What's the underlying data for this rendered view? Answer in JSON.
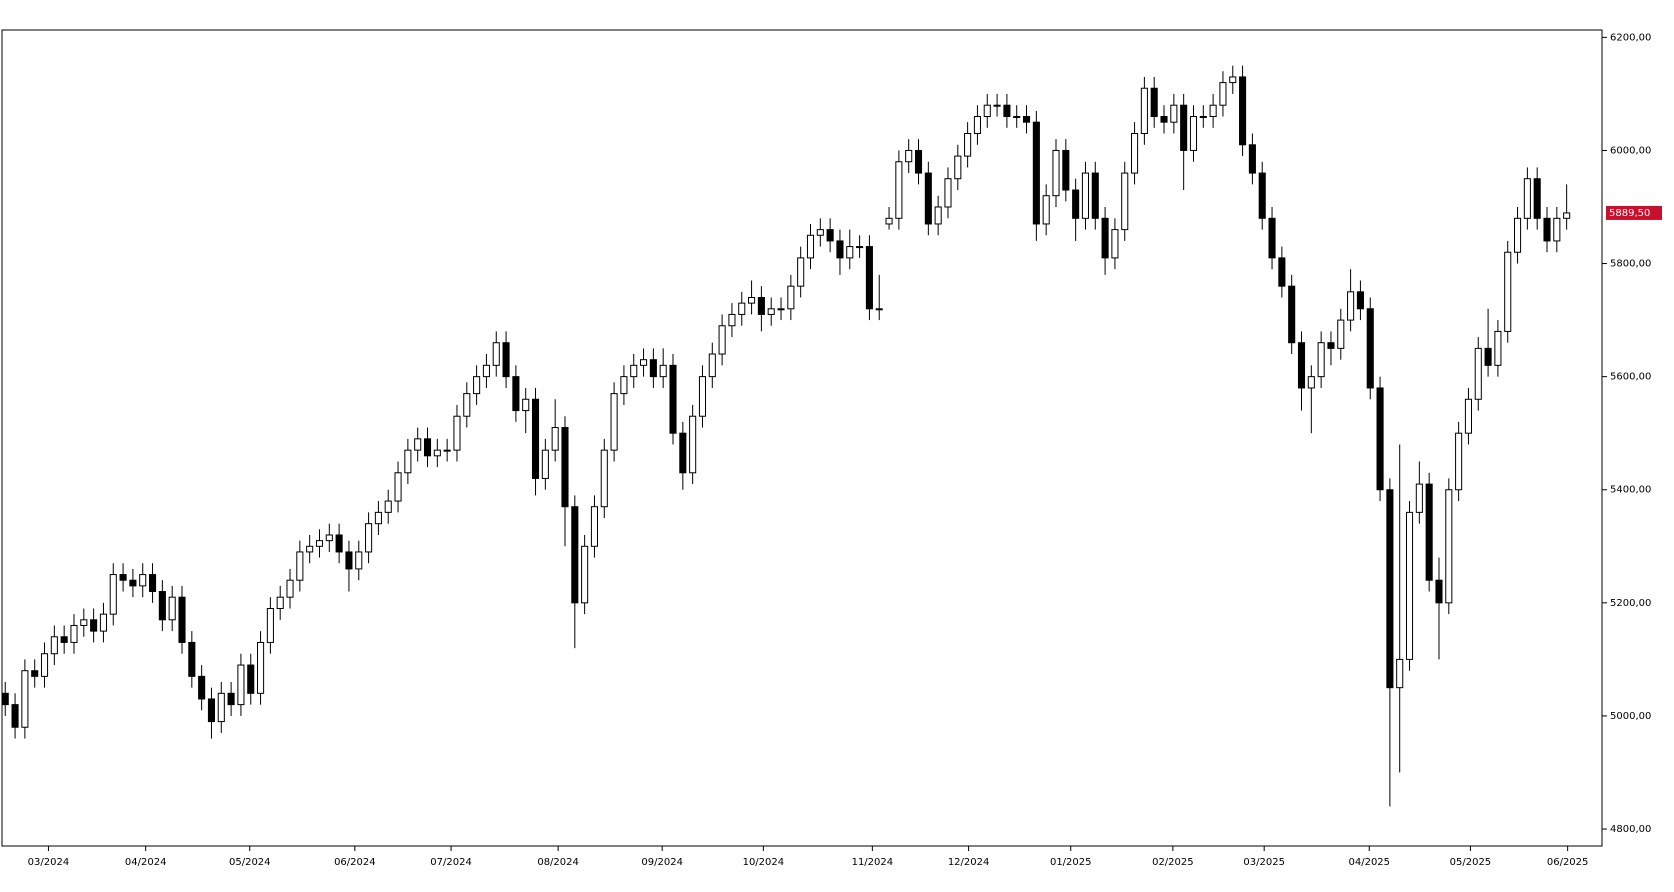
{
  "chart_data": {
    "type": "candlestick",
    "xlim": [
      -0.33,
      162.6
    ],
    "xticks": [
      {
        "value": 4.4,
        "label": "03/2024"
      },
      {
        "value": 14.3,
        "label": "04/2024"
      },
      {
        "value": 24.9,
        "label": "05/2024"
      },
      {
        "value": 35.6,
        "label": "06/2024"
      },
      {
        "value": 45.4,
        "label": "07/2024"
      },
      {
        "value": 56.3,
        "label": "08/2024"
      },
      {
        "value": 66.9,
        "label": "09/2024"
      },
      {
        "value": 77.2,
        "label": "10/2024"
      },
      {
        "value": 88.3,
        "label": "11/2024"
      },
      {
        "value": 98.1,
        "label": "12/2024"
      },
      {
        "value": 108.5,
        "label": "01/2025"
      },
      {
        "value": 118.9,
        "label": "02/2025"
      },
      {
        "value": 128.2,
        "label": "03/2025"
      },
      {
        "value": 138.9,
        "label": "04/2025"
      },
      {
        "value": 149.2,
        "label": "05/2025"
      },
      {
        "value": 159.1,
        "label": "06/2025"
      }
    ],
    "ylim": [
      4770,
      6213
    ],
    "yticks": [
      {
        "value": 4800,
        "label": "4800,00"
      },
      {
        "value": 5000,
        "label": "5000,00"
      },
      {
        "value": 5200,
        "label": "5200,00"
      },
      {
        "value": 5400,
        "label": "5400,00"
      },
      {
        "value": 5600,
        "label": "5600,00"
      },
      {
        "value": 5800,
        "label": "5800,00"
      },
      {
        "value": 6000,
        "label": "6000,00"
      },
      {
        "value": 6200,
        "label": "6200,00"
      }
    ],
    "up_color": "#ffffff",
    "down_color": "#000000",
    "last_price_color": "#c8102e",
    "last_price_label": "5889,50",
    "open": [
      5040,
      5020,
      4980,
      5080,
      5070,
      5110,
      5140,
      5130,
      5160,
      5170,
      5150,
      5180,
      5250,
      5240,
      5230,
      5250,
      5220,
      5170,
      5210,
      5130,
      5070,
      5030,
      4990,
      5040,
      5020,
      5090,
      5040,
      5130,
      5190,
      5210,
      5240,
      5290,
      5300,
      5310,
      5320,
      5290,
      5260,
      5290,
      5340,
      5360,
      5380,
      5430,
      5470,
      5490,
      5460,
      5470,
      5470,
      5530,
      5570,
      5600,
      5620,
      5660,
      5600,
      5540,
      5560,
      5420,
      5470,
      5510,
      5370,
      5200,
      5300,
      5370,
      5470,
      5570,
      5600,
      5620,
      5630,
      5600,
      5620,
      5500,
      5430,
      5530,
      5600,
      5640,
      5690,
      5710,
      5730,
      5740,
      5710,
      5720,
      5720,
      5760,
      5810,
      5850,
      5860,
      5840,
      5810,
      5830,
      5830,
      5720,
      5870,
      5880,
      5980,
      6000,
      5960,
      5870,
      5900,
      5950,
      5990,
      6030,
      6060,
      6080,
      6080,
      6060,
      6060,
      6050,
      5870,
      5920,
      6000,
      5930,
      5880,
      5960,
      5880,
      5810,
      5860,
      5960,
      6030,
      6110,
      6060,
      6050,
      6080,
      6000,
      6060,
      6060,
      6080,
      6120,
      6130,
      6010,
      5960,
      5880,
      5810,
      5760,
      5660,
      5580,
      5600,
      5660,
      5650,
      5700,
      5750,
      5720,
      5580,
      5400,
      5050,
      5100,
      5360,
      5410,
      5240,
      5200,
      5400,
      5500,
      5560,
      5650,
      5620,
      5680,
      5820,
      5880,
      5950,
      5880,
      5840,
      5880
    ],
    "high": [
      5060,
      5040,
      5100,
      5100,
      5130,
      5160,
      5160,
      5180,
      5190,
      5190,
      5200,
      5270,
      5270,
      5260,
      5270,
      5270,
      5240,
      5230,
      5230,
      5150,
      5090,
      5050,
      5060,
      5060,
      5110,
      5110,
      5150,
      5210,
      5230,
      5260,
      5310,
      5320,
      5330,
      5340,
      5340,
      5310,
      5310,
      5360,
      5380,
      5400,
      5450,
      5490,
      5510,
      5510,
      5490,
      5490,
      5550,
      5590,
      5620,
      5640,
      5680,
      5680,
      5620,
      5580,
      5580,
      5490,
      5560,
      5530,
      5390,
      5320,
      5390,
      5490,
      5590,
      5620,
      5640,
      5650,
      5650,
      5650,
      5640,
      5520,
      5550,
      5620,
      5660,
      5710,
      5730,
      5750,
      5770,
      5760,
      5740,
      5740,
      5780,
      5830,
      5870,
      5880,
      5880,
      5860,
      5860,
      5850,
      5850,
      5780,
      5900,
      6000,
      6020,
      6020,
      5980,
      5920,
      5970,
      6010,
      6050,
      6080,
      6100,
      6100,
      6100,
      6080,
      6080,
      6070,
      5940,
      6020,
      6020,
      5950,
      5980,
      5980,
      5900,
      5880,
      5980,
      6050,
      6130,
      6130,
      6080,
      6100,
      6100,
      6080,
      6080,
      6100,
      6140,
      6150,
      6150,
      6030,
      5980,
      5900,
      5830,
      5780,
      5680,
      5620,
      5680,
      5680,
      5720,
      5790,
      5770,
      5740,
      5600,
      5420,
      5480,
      5380,
      5450,
      5430,
      5280,
      5420,
      5520,
      5580,
      5670,
      5720,
      5700,
      5840,
      5900,
      5970,
      5970,
      5900,
      5900,
      5940
    ],
    "low": [
      5000,
      4960,
      4960,
      5050,
      5050,
      5090,
      5110,
      5110,
      5140,
      5130,
      5130,
      5160,
      5220,
      5210,
      5210,
      5200,
      5150,
      5150,
      5110,
      5050,
      5010,
      4960,
      4970,
      5000,
      5000,
      5020,
      5020,
      5110,
      5170,
      5190,
      5220,
      5270,
      5280,
      5290,
      5270,
      5220,
      5240,
      5270,
      5320,
      5340,
      5360,
      5410,
      5450,
      5440,
      5440,
      5450,
      5450,
      5510,
      5550,
      5580,
      5600,
      5580,
      5520,
      5500,
      5390,
      5400,
      5450,
      5300,
      5120,
      5180,
      5280,
      5350,
      5450,
      5550,
      5580,
      5600,
      5580,
      5580,
      5480,
      5400,
      5410,
      5510,
      5580,
      5620,
      5670,
      5690,
      5710,
      5680,
      5690,
      5700,
      5700,
      5740,
      5790,
      5830,
      5820,
      5780,
      5790,
      5810,
      5700,
      5700,
      5860,
      5860,
      5960,
      5940,
      5850,
      5850,
      5880,
      5930,
      5970,
      6010,
      6040,
      6060,
      6040,
      6040,
      6030,
      5840,
      5850,
      5900,
      5910,
      5840,
      5860,
      5860,
      5780,
      5790,
      5840,
      5940,
      6010,
      6040,
      6030,
      6030,
      5930,
      5980,
      6040,
      6040,
      6060,
      6100,
      5990,
      5940,
      5860,
      5790,
      5740,
      5640,
      5540,
      5500,
      5580,
      5620,
      5630,
      5680,
      5700,
      5560,
      5380,
      4840,
      4900,
      5080,
      5340,
      5220,
      5100,
      5180,
      5380,
      5480,
      5540,
      5600,
      5600,
      5660,
      5800,
      5860,
      5860,
      5820,
      5820,
      5860
    ],
    "close": [
      5020,
      4980,
      5080,
      5070,
      5110,
      5140,
      5130,
      5160,
      5170,
      5150,
      5180,
      5250,
      5240,
      5230,
      5250,
      5220,
      5170,
      5210,
      5130,
      5070,
      5030,
      4990,
      5040,
      5020,
      5090,
      5040,
      5130,
      5190,
      5210,
      5240,
      5290,
      5300,
      5310,
      5320,
      5290,
      5260,
      5290,
      5340,
      5360,
      5380,
      5430,
      5470,
      5490,
      5460,
      5470,
      5470,
      5530,
      5570,
      5600,
      5620,
      5660,
      5600,
      5540,
      5560,
      5420,
      5470,
      5510,
      5370,
      5200,
      5300,
      5370,
      5470,
      5570,
      5600,
      5620,
      5630,
      5600,
      5620,
      5500,
      5430,
      5530,
      5600,
      5640,
      5690,
      5710,
      5730,
      5740,
      5710,
      5720,
      5720,
      5760,
      5810,
      5850,
      5860,
      5840,
      5810,
      5830,
      5830,
      5720,
      5720,
      5880,
      5980,
      6000,
      5960,
      5870,
      5900,
      5950,
      5990,
      6030,
      6060,
      6080,
      6080,
      6060,
      6060,
      6050,
      5870,
      5920,
      6000,
      5930,
      5880,
      5960,
      5880,
      5810,
      5860,
      5960,
      6030,
      6110,
      6060,
      6050,
      6080,
      6000,
      6060,
      6060,
      6080,
      6120,
      6130,
      6010,
      5960,
      5880,
      5810,
      5760,
      5660,
      5580,
      5600,
      5660,
      5650,
      5700,
      5750,
      5720,
      5580,
      5400,
      5050,
      5100,
      5360,
      5410,
      5240,
      5200,
      5400,
      5500,
      5560,
      5650,
      5620,
      5680,
      5820,
      5880,
      5950,
      5880,
      5840,
      5880,
      5889.5
    ]
  }
}
